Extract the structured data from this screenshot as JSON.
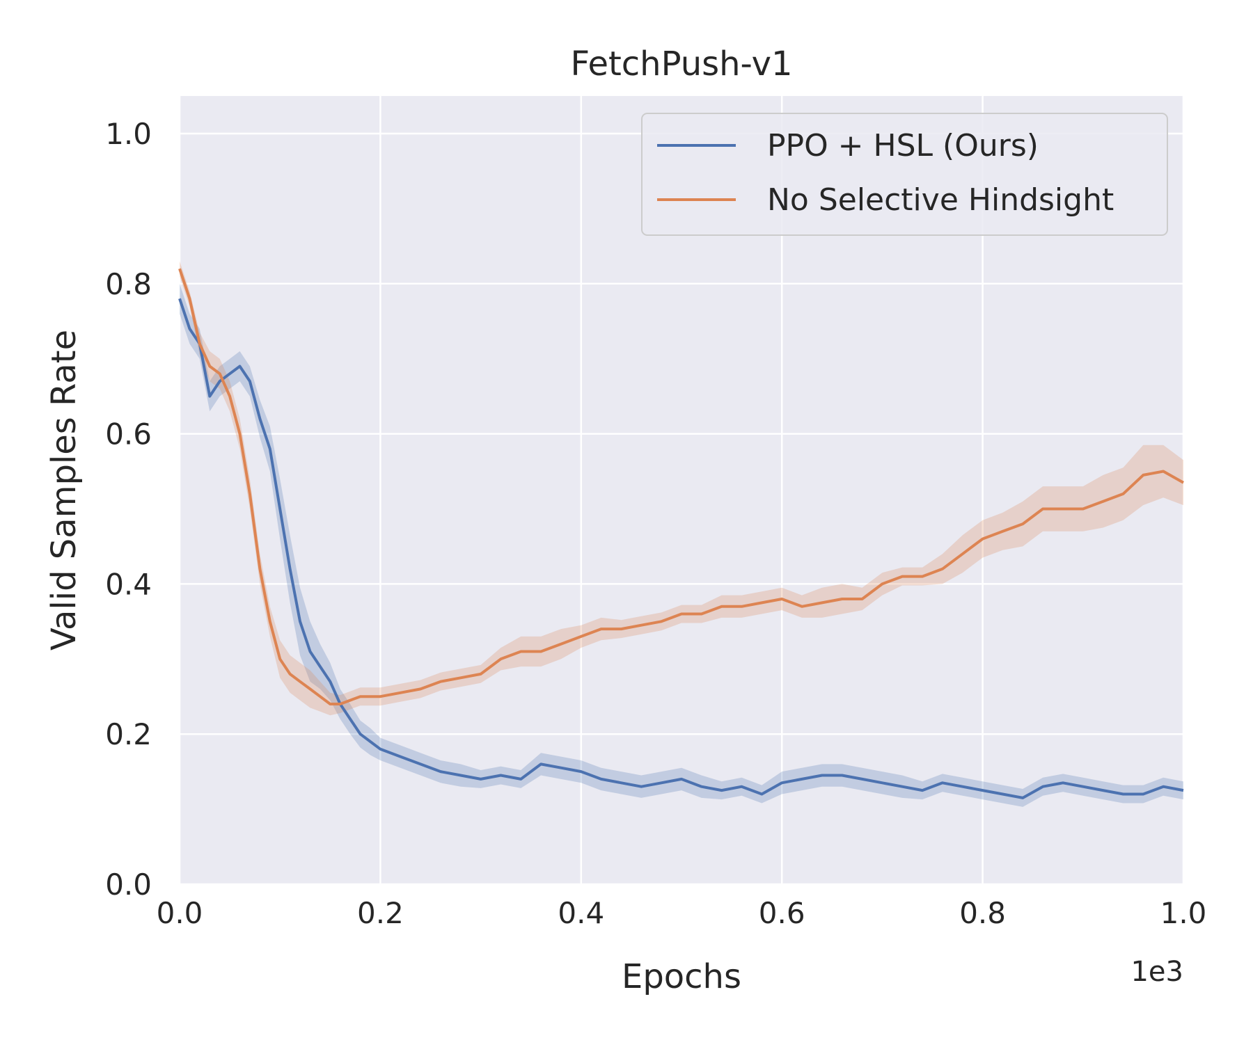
{
  "chart_data": {
    "type": "line",
    "title": "FetchPush-v1",
    "xlabel": "Epochs",
    "ylabel": "Valid Samples Rate",
    "x_offset_label": "1e3",
    "xlim": [
      0,
      1.0
    ],
    "ylim": [
      0,
      1.05
    ],
    "x_ticks": [
      0.0,
      0.2,
      0.4,
      0.6,
      0.8,
      1.0
    ],
    "x_tick_labels": [
      "0.0",
      "0.2",
      "0.4",
      "0.6",
      "0.8",
      "1.0"
    ],
    "y_ticks": [
      0.0,
      0.2,
      0.4,
      0.6,
      0.8,
      1.0
    ],
    "y_tick_labels": [
      "0.0",
      "0.2",
      "0.4",
      "0.6",
      "0.8",
      "1.0"
    ],
    "grid": true,
    "legend_position": "top-right",
    "background": "#eaeaf2",
    "series": [
      {
        "name": "PPO + HSL (Ours)",
        "color": "#4c72b0",
        "x": [
          0.0,
          0.01,
          0.02,
          0.03,
          0.04,
          0.05,
          0.06,
          0.07,
          0.08,
          0.09,
          0.1,
          0.11,
          0.12,
          0.13,
          0.14,
          0.15,
          0.16,
          0.17,
          0.18,
          0.19,
          0.2,
          0.22,
          0.24,
          0.26,
          0.28,
          0.3,
          0.32,
          0.34,
          0.36,
          0.38,
          0.4,
          0.42,
          0.44,
          0.46,
          0.48,
          0.5,
          0.52,
          0.54,
          0.56,
          0.58,
          0.6,
          0.62,
          0.64,
          0.66,
          0.68,
          0.7,
          0.72,
          0.74,
          0.76,
          0.78,
          0.8,
          0.82,
          0.84,
          0.86,
          0.88,
          0.9,
          0.92,
          0.94,
          0.96,
          0.98,
          1.0
        ],
        "y": [
          0.78,
          0.74,
          0.72,
          0.65,
          0.67,
          0.68,
          0.69,
          0.67,
          0.62,
          0.58,
          0.5,
          0.42,
          0.35,
          0.31,
          0.29,
          0.27,
          0.24,
          0.22,
          0.2,
          0.19,
          0.18,
          0.17,
          0.16,
          0.15,
          0.145,
          0.14,
          0.145,
          0.14,
          0.16,
          0.155,
          0.15,
          0.14,
          0.135,
          0.13,
          0.135,
          0.14,
          0.13,
          0.125,
          0.13,
          0.12,
          0.135,
          0.14,
          0.145,
          0.145,
          0.14,
          0.135,
          0.13,
          0.125,
          0.135,
          0.13,
          0.125,
          0.12,
          0.115,
          0.13,
          0.135,
          0.13,
          0.125,
          0.12,
          0.12,
          0.13,
          0.125
        ],
        "band": [
          0.02,
          0.02,
          0.02,
          0.02,
          0.02,
          0.02,
          0.02,
          0.02,
          0.025,
          0.03,
          0.04,
          0.045,
          0.045,
          0.04,
          0.03,
          0.025,
          0.02,
          0.02,
          0.018,
          0.018,
          0.015,
          0.015,
          0.015,
          0.015,
          0.015,
          0.012,
          0.012,
          0.012,
          0.015,
          0.015,
          0.015,
          0.015,
          0.015,
          0.015,
          0.015,
          0.015,
          0.015,
          0.012,
          0.012,
          0.012,
          0.015,
          0.015,
          0.015,
          0.015,
          0.015,
          0.015,
          0.015,
          0.012,
          0.012,
          0.012,
          0.012,
          0.012,
          0.012,
          0.012,
          0.012,
          0.012,
          0.012,
          0.012,
          0.012,
          0.012,
          0.012
        ]
      },
      {
        "name": "No Selective Hindsight",
        "color": "#dd8452",
        "x": [
          0.0,
          0.01,
          0.02,
          0.03,
          0.04,
          0.05,
          0.06,
          0.07,
          0.08,
          0.09,
          0.1,
          0.11,
          0.12,
          0.13,
          0.14,
          0.15,
          0.16,
          0.17,
          0.18,
          0.19,
          0.2,
          0.22,
          0.24,
          0.26,
          0.28,
          0.3,
          0.32,
          0.34,
          0.36,
          0.38,
          0.4,
          0.42,
          0.44,
          0.46,
          0.48,
          0.5,
          0.52,
          0.54,
          0.56,
          0.58,
          0.6,
          0.62,
          0.64,
          0.66,
          0.68,
          0.7,
          0.72,
          0.74,
          0.76,
          0.78,
          0.8,
          0.82,
          0.84,
          0.86,
          0.88,
          0.9,
          0.92,
          0.94,
          0.96,
          0.98,
          1.0
        ],
        "y": [
          0.82,
          0.78,
          0.72,
          0.69,
          0.68,
          0.65,
          0.6,
          0.52,
          0.42,
          0.35,
          0.3,
          0.28,
          0.27,
          0.26,
          0.25,
          0.24,
          0.24,
          0.245,
          0.25,
          0.25,
          0.25,
          0.255,
          0.26,
          0.27,
          0.275,
          0.28,
          0.3,
          0.31,
          0.31,
          0.32,
          0.33,
          0.34,
          0.34,
          0.345,
          0.35,
          0.36,
          0.36,
          0.37,
          0.37,
          0.375,
          0.38,
          0.37,
          0.375,
          0.38,
          0.38,
          0.4,
          0.41,
          0.41,
          0.42,
          0.44,
          0.46,
          0.47,
          0.48,
          0.5,
          0.5,
          0.5,
          0.51,
          0.52,
          0.545,
          0.55,
          0.535
        ],
        "band": [
          0.01,
          0.01,
          0.015,
          0.02,
          0.02,
          0.02,
          0.02,
          0.02,
          0.02,
          0.02,
          0.025,
          0.025,
          0.025,
          0.025,
          0.02,
          0.015,
          0.012,
          0.012,
          0.012,
          0.012,
          0.012,
          0.012,
          0.012,
          0.012,
          0.012,
          0.012,
          0.015,
          0.02,
          0.02,
          0.02,
          0.015,
          0.015,
          0.012,
          0.012,
          0.012,
          0.012,
          0.012,
          0.015,
          0.015,
          0.015,
          0.015,
          0.015,
          0.02,
          0.02,
          0.015,
          0.015,
          0.012,
          0.012,
          0.02,
          0.025,
          0.025,
          0.025,
          0.03,
          0.03,
          0.03,
          0.03,
          0.035,
          0.035,
          0.04,
          0.035,
          0.03
        ]
      }
    ]
  }
}
